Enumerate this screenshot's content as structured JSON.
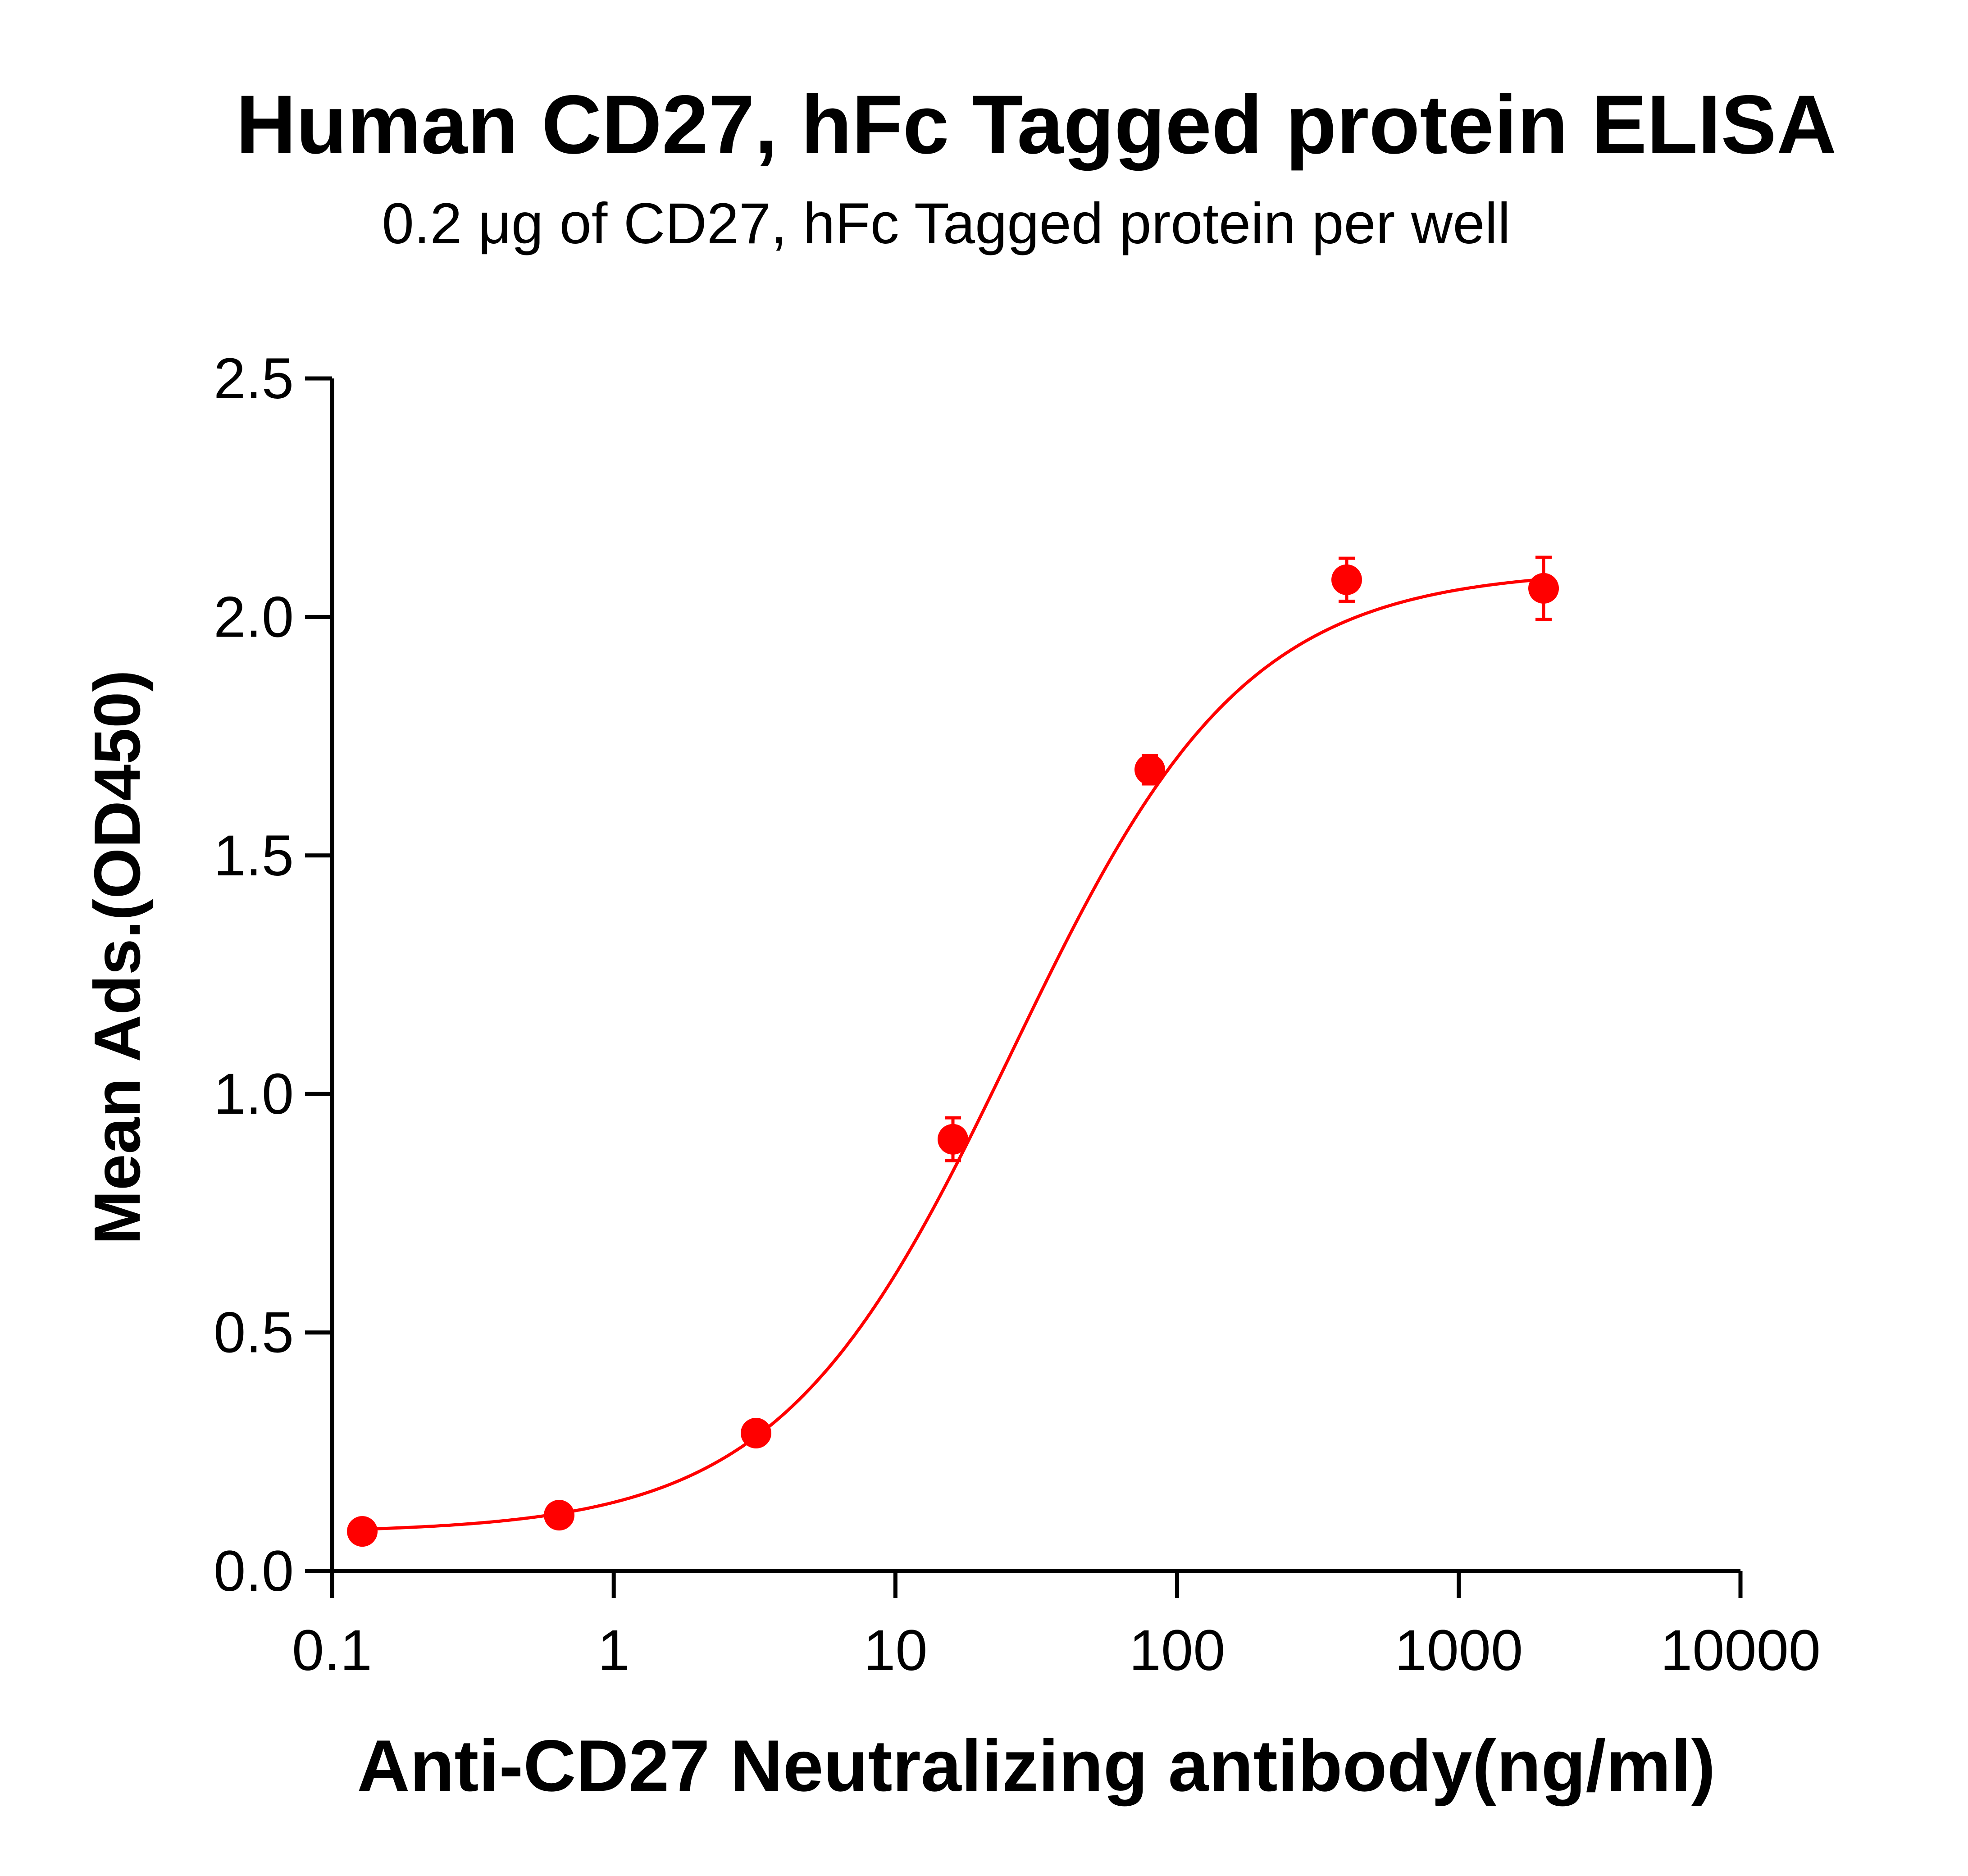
{
  "chart_data": {
    "type": "scatter",
    "title": "Human CD27, hFc Tagged protein ELISA",
    "subtitle": "0.2 μg of CD27, hFc Tagged protein per well",
    "xlabel": "Anti-CD27 Neutralizing antibody(ng/ml)",
    "ylabel": "Mean Ads.(OD450)",
    "x_scale": "log",
    "xlim": [
      0.1,
      10000
    ],
    "ylim": [
      0.0,
      2.5
    ],
    "x_ticks": [
      0.1,
      1,
      10,
      100,
      1000,
      10000
    ],
    "x_tick_labels": [
      "0.1",
      "1",
      "10",
      "100",
      "1000",
      "10000"
    ],
    "y_ticks": [
      0.0,
      0.5,
      1.0,
      1.5,
      2.0,
      2.5
    ],
    "y_tick_labels": [
      "0.0",
      "0.5",
      "1.0",
      "1.5",
      "2.0",
      "2.5"
    ],
    "grid": false,
    "legend": "none",
    "series": [
      {
        "color": "#ff0000",
        "points": [
          {
            "x": 0.128,
            "y": 0.083,
            "err": 0.005
          },
          {
            "x": 0.64,
            "y": 0.117,
            "err": 0.005
          },
          {
            "x": 3.2,
            "y": 0.289,
            "err": 0.01
          },
          {
            "x": 16,
            "y": 0.905,
            "err": 0.045
          },
          {
            "x": 80,
            "y": 1.68,
            "err": 0.03
          },
          {
            "x": 400,
            "y": 2.078,
            "err": 0.045
          },
          {
            "x": 2000,
            "y": 2.06,
            "err": 0.065
          }
        ],
        "fit": {
          "model": "4PL",
          "bottom": 0.08,
          "top": 2.1,
          "ec50": 26,
          "hill": 1.05
        }
      }
    ]
  }
}
